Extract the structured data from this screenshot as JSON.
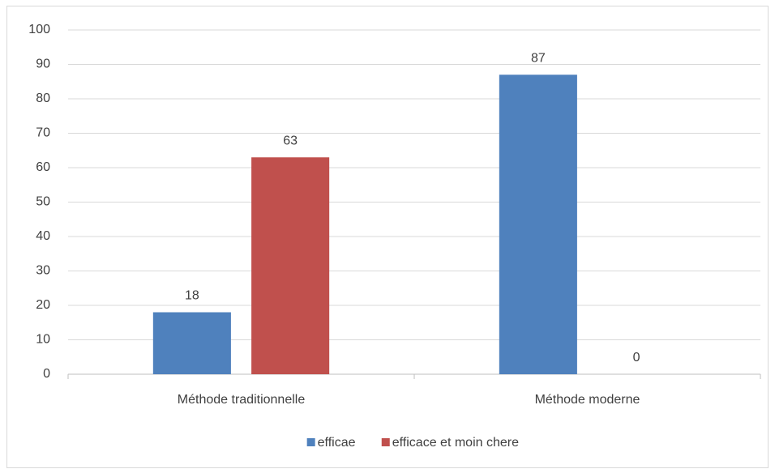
{
  "chart_data": {
    "type": "bar",
    "categories": [
      "Méthode traditionnelle",
      "Méthode moderne"
    ],
    "series": [
      {
        "name": "efficae",
        "color": "#4f81bd",
        "values": [
          18,
          87
        ]
      },
      {
        "name": "efficace et moin chere",
        "color": "#c0504d",
        "values": [
          63,
          0
        ]
      }
    ],
    "ylim": [
      0,
      100
    ],
    "yticks": [
      0,
      10,
      20,
      30,
      40,
      50,
      60,
      70,
      80,
      90,
      100
    ],
    "grid": true,
    "data_labels": true,
    "legend": "bottom"
  }
}
